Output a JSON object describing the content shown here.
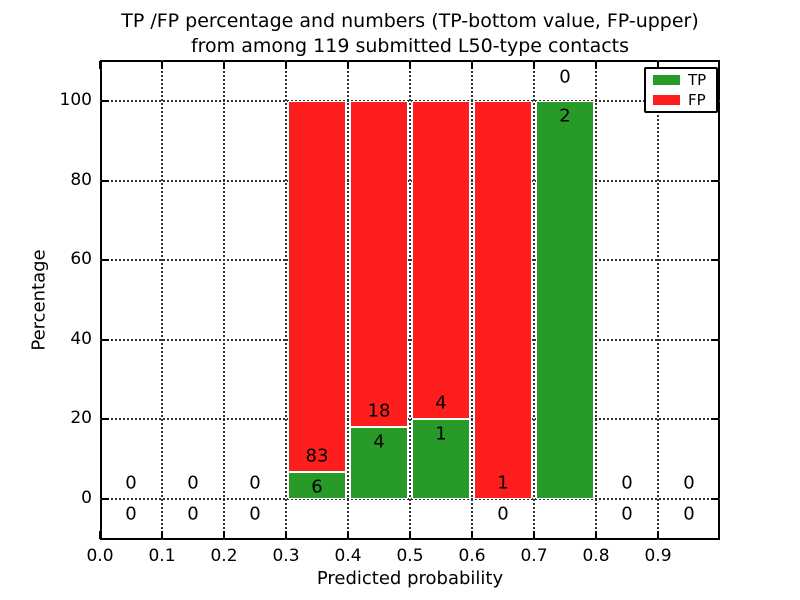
{
  "chart_data": {
    "type": "bar",
    "stacked": true,
    "normalized": "each bar scaled to 100%",
    "title_lines": [
      "TP /FP percentage and numbers (TP-bottom value, FP-upper)",
      "from among 119 submitted L50-type contacts"
    ],
    "xlabel": "Predicted probability",
    "ylabel": "Percentage",
    "x_tick_labels": [
      "0.0",
      "0.1",
      "0.2",
      "0.3",
      "0.4",
      "0.5",
      "0.6",
      "0.7",
      "0.8",
      "0.9"
    ],
    "y_ticks": [
      0,
      20,
      40,
      60,
      80,
      100
    ],
    "y_tick_labels": [
      "0",
      "20",
      "40",
      "60",
      "80",
      "100"
    ],
    "xlim": [
      0.0,
      1.0
    ],
    "ylim": [
      -10,
      110
    ],
    "grid": "dotted",
    "total_contacts": 119,
    "legend": {
      "position": "upper right",
      "entries": [
        {
          "name": "TP",
          "color": "#289a28"
        },
        {
          "name": "FP",
          "color": "#ff1e1e"
        }
      ]
    },
    "colors": {
      "tp": "#289a28",
      "fp": "#ff1e1e"
    },
    "bins": [
      {
        "x0": 0.0,
        "x1": 0.1,
        "tp": 0,
        "fp": 0
      },
      {
        "x0": 0.1,
        "x1": 0.2,
        "tp": 0,
        "fp": 0
      },
      {
        "x0": 0.2,
        "x1": 0.3,
        "tp": 0,
        "fp": 0
      },
      {
        "x0": 0.3,
        "x1": 0.4,
        "tp": 6,
        "fp": 83
      },
      {
        "x0": 0.4,
        "x1": 0.5,
        "tp": 4,
        "fp": 18
      },
      {
        "x0": 0.5,
        "x1": 0.6,
        "tp": 1,
        "fp": 4
      },
      {
        "x0": 0.6,
        "x1": 0.7,
        "tp": 0,
        "fp": 1
      },
      {
        "x0": 0.7,
        "x1": 0.8,
        "tp": 2,
        "fp": 0
      },
      {
        "x0": 0.8,
        "x1": 0.9,
        "tp": 0,
        "fp": 0
      },
      {
        "x0": 0.9,
        "x1": 1.0,
        "tp": 0,
        "fp": 0
      }
    ]
  }
}
